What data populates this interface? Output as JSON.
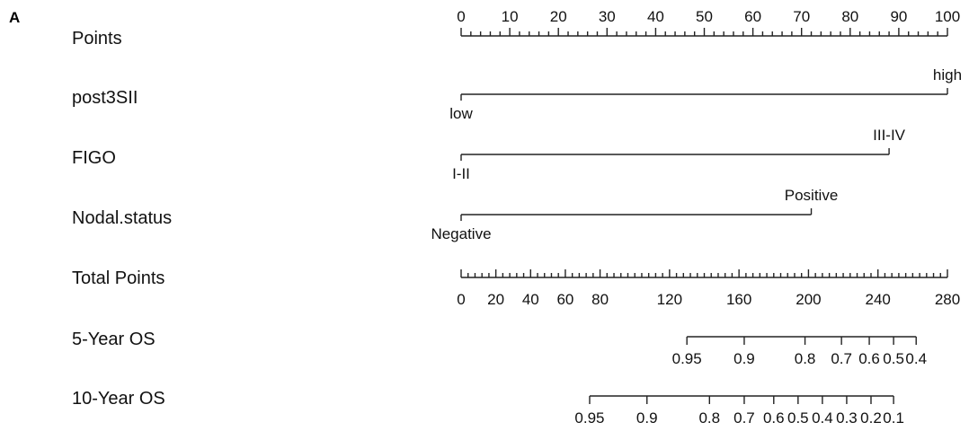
{
  "chart_data": {
    "type": "nomogram",
    "panel_label": "A",
    "rows": [
      {
        "label": "Points",
        "kind": "scale",
        "range": [
          0,
          100
        ],
        "major_ticks": [
          0,
          10,
          20,
          30,
          40,
          50,
          60,
          70,
          80,
          90,
          100
        ],
        "minor_step": 2
      },
      {
        "label": "post3SII",
        "kind": "factor",
        "levels": [
          {
            "name": "low",
            "points": 0
          },
          {
            "name": "high",
            "points": 100
          }
        ]
      },
      {
        "label": "FIGO",
        "kind": "factor",
        "levels": [
          {
            "name": "I-II",
            "points": 0
          },
          {
            "name": "III-IV",
            "points": 88
          }
        ]
      },
      {
        "label": "Nodal.status",
        "kind": "factor",
        "levels": [
          {
            "name": "Negative",
            "points": 0
          },
          {
            "name": "Positive",
            "points": 72
          }
        ]
      },
      {
        "label": "Total Points",
        "kind": "scale",
        "range": [
          0,
          280
        ],
        "tick_labels": [
          "0",
          "20",
          "40",
          "60",
          "80",
          "120",
          "160",
          "200",
          "240",
          "280"
        ],
        "tick_values": [
          0,
          20,
          40,
          60,
          80,
          120,
          160,
          200,
          240,
          280
        ],
        "minor_step": 4
      },
      {
        "label": "5-Year OS",
        "kind": "probability",
        "ticks": [
          {
            "label": "0.95",
            "total_points": 130
          },
          {
            "label": "0.9",
            "total_points": 163
          },
          {
            "label": "0.8",
            "total_points": 198
          },
          {
            "label": "0.7",
            "total_points": 219
          },
          {
            "label": "0.6",
            "total_points": 235
          },
          {
            "label": "0.5",
            "total_points": 249
          },
          {
            "label": "0.4",
            "total_points": 262
          }
        ]
      },
      {
        "label": "10-Year OS",
        "kind": "probability",
        "ticks": [
          {
            "label": "0.95",
            "total_points": 74
          },
          {
            "label": "0.9",
            "total_points": 107
          },
          {
            "label": "0.8",
            "total_points": 143
          },
          {
            "label": "0.7",
            "total_points": 163
          },
          {
            "label": "0.6",
            "total_points": 180
          },
          {
            "label": "0.5",
            "total_points": 194
          },
          {
            "label": "0.4",
            "total_points": 208
          },
          {
            "label": "0.3",
            "total_points": 222
          },
          {
            "label": "0.2",
            "total_points": 236
          },
          {
            "label": "0.1",
            "total_points": 249
          }
        ]
      }
    ]
  }
}
